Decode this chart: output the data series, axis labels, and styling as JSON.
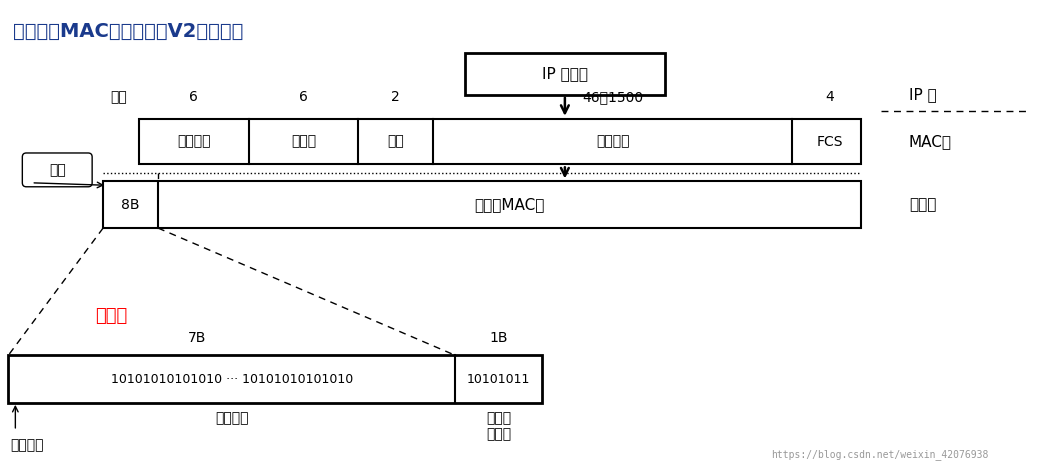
{
  "title": "最常用的MAC帧是以太网V2的格式。",
  "title_color": "#1a3a8c",
  "mac_fields": [
    "目的地址",
    "源地址",
    "类型",
    "数　　据",
    "FCS"
  ],
  "mac_field_widths": [
    1.1,
    1.1,
    0.75,
    3.6,
    0.75
  ],
  "mac_field_bytes": [
    "6",
    "6",
    "2",
    "46～1500",
    "4"
  ],
  "ip_box_label": "IP 数据报",
  "ip_layer_label": "IP 层",
  "mac_layer_label": "MAC层",
  "phy_layer_label": "物理层",
  "insert_label": "插入",
  "preamble_label": "前导码",
  "preamble_color": "#ff0000",
  "byte_label": "字节",
  "preamble_7b_label": "7B",
  "preamble_1b_label": "1B",
  "preamble_content": "10101010101010 ··· 10101010101010",
  "sfd_content": "10101011",
  "presync_label": "前同步码",
  "sfd_label": "帧开始\n定界符",
  "send_first_label": "发送在前",
  "phy_frame_label": "以太网MAC帧",
  "preamble_8b_label": "8B",
  "watermark": "https://blog.csdn.net/weixin_42076938"
}
